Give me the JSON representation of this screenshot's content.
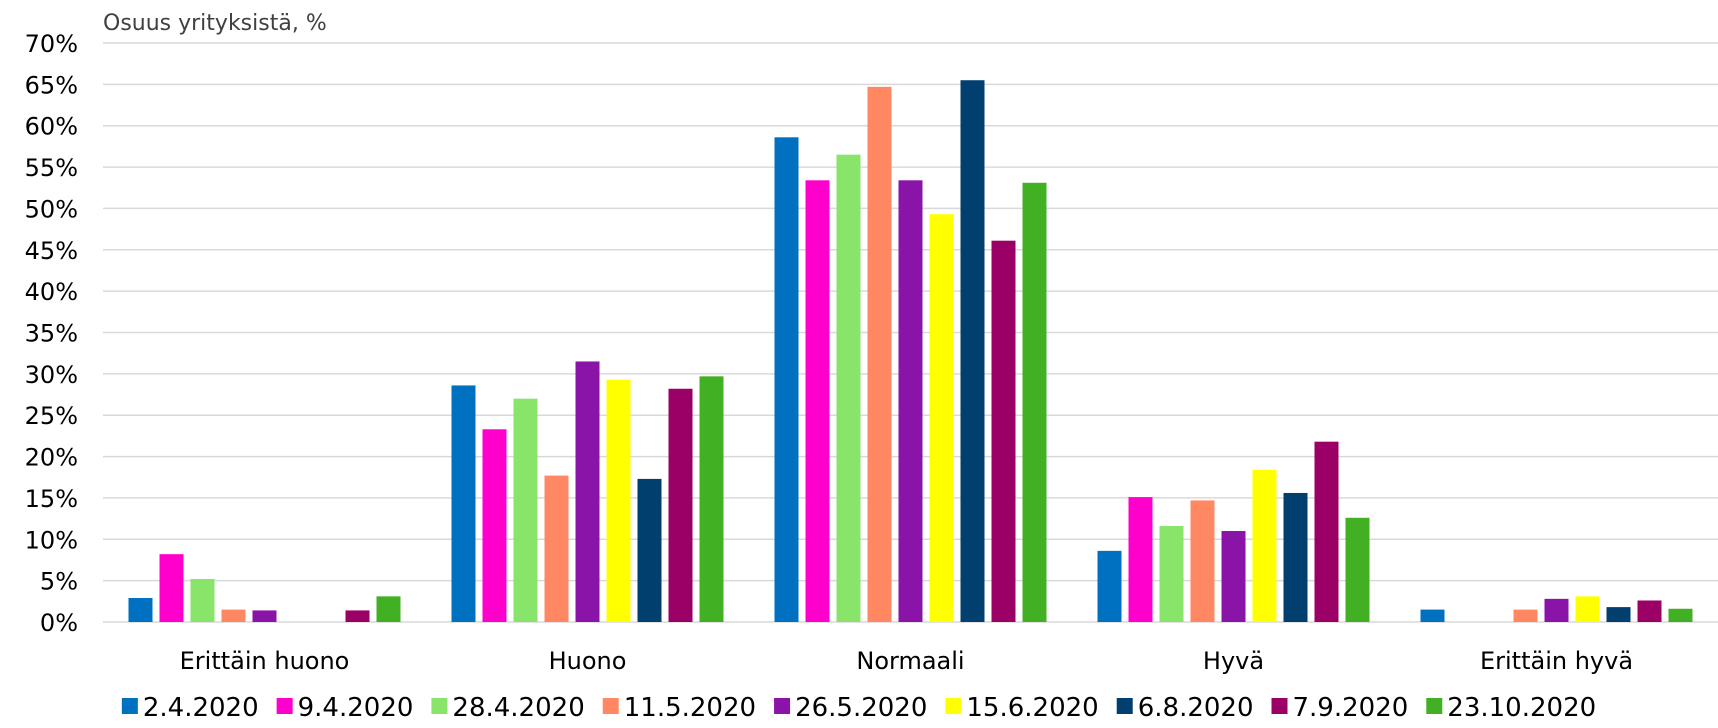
{
  "chart_data": {
    "type": "bar",
    "ylabel": "Osuus yrityksistä, %",
    "ylim": [
      0,
      70
    ],
    "ytick_step": 5,
    "ytick_suffix": "%",
    "grid": true,
    "legend_position": "bottom",
    "categories": [
      "Erittäin huono",
      "Huono",
      "Normaali",
      "Hyvä",
      "Erittäin hyvä"
    ],
    "series": [
      {
        "name": "2.4.2020",
        "color": "#0070c0",
        "values": [
          2.9,
          28.6,
          58.6,
          8.6,
          1.5
        ]
      },
      {
        "name": "9.4.2020",
        "color": "#ff00cc",
        "values": [
          8.2,
          23.3,
          53.4,
          15.1,
          0
        ]
      },
      {
        "name": "28.4.2020",
        "color": "#88e56a",
        "values": [
          5.2,
          27.0,
          56.5,
          11.6,
          0
        ]
      },
      {
        "name": "11.5.2020",
        "color": "#ff8863",
        "values": [
          1.5,
          17.7,
          64.7,
          14.7,
          1.5
        ]
      },
      {
        "name": "26.5.2020",
        "color": "#8b14a8",
        "values": [
          1.4,
          31.5,
          53.4,
          11.0,
          2.8
        ]
      },
      {
        "name": "15.6.2020",
        "color": "#ffff00",
        "values": [
          0,
          29.3,
          49.3,
          18.4,
          3.1
        ]
      },
      {
        "name": "6.8.2020",
        "color": "#003f6e",
        "values": [
          0,
          17.3,
          65.5,
          15.6,
          1.8
        ]
      },
      {
        "name": "7.9.2020",
        "color": "#9b0066",
        "values": [
          1.4,
          28.2,
          46.1,
          21.8,
          2.6
        ]
      },
      {
        "name": "23.10.2020",
        "color": "#42b023",
        "values": [
          3.1,
          29.7,
          53.1,
          12.6,
          1.6
        ]
      }
    ]
  }
}
